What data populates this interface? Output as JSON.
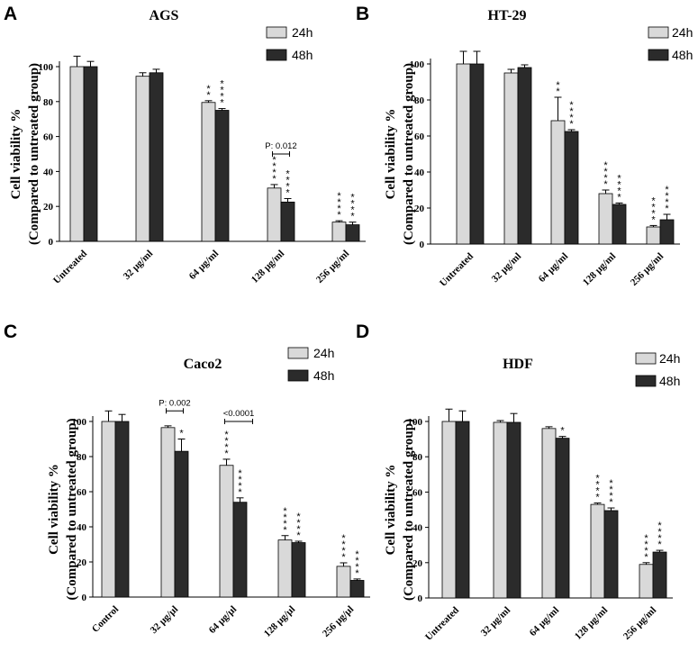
{
  "figure": {
    "series_names": [
      "24h",
      "48h"
    ],
    "colors": {
      "h24": "#d9d9d9",
      "h48": "#2b2b2b",
      "stroke": "#000000"
    }
  },
  "chart_data": [
    {
      "type": "bar",
      "panel": "A",
      "title": "AGS",
      "ylabel": "Cell viability %",
      "ylabel2": "(Compared to untreated group)",
      "ylim": [
        0,
        100
      ],
      "yticks": [
        0,
        20,
        40,
        60,
        80,
        100
      ],
      "categories": [
        "Untreated",
        "32 µg/ml",
        "64 µg/ml",
        "128 µg/ml",
        "256 µg/ml"
      ],
      "series": [
        {
          "name": "24h",
          "values": [
            100,
            94.5,
            79.5,
            30.5,
            11
          ],
          "errors": [
            6,
            2,
            1,
            2,
            0.8
          ],
          "stars": [
            "",
            "",
            "**",
            "****",
            "****"
          ]
        },
        {
          "name": "48h",
          "values": [
            100,
            96.5,
            75,
            22.5,
            9.5
          ],
          "errors": [
            3,
            2,
            1,
            2,
            1.5
          ],
          "stars": [
            "",
            "",
            "****",
            "****",
            "****"
          ]
        }
      ],
      "brackets": [
        {
          "category": 3,
          "label": "P: 0.012",
          "value": 50
        }
      ]
    },
    {
      "type": "bar",
      "panel": "B",
      "title": "HT-29",
      "ylabel": "Cell viability %",
      "ylabel2": "(Compared to untreated group)",
      "ylim": [
        0,
        100
      ],
      "yticks": [
        0,
        20,
        40,
        60,
        80,
        100
      ],
      "categories": [
        "Untreated",
        "32 µg/ml",
        "64 µg/ml",
        "128 µg/ml",
        "256 µg/ml"
      ],
      "series": [
        {
          "name": "24h",
          "values": [
            100,
            95,
            68.5,
            28,
            9.5
          ],
          "errors": [
            7,
            2,
            13,
            2,
            0.8
          ],
          "stars": [
            "",
            "",
            "**",
            "****",
            "****"
          ]
        },
        {
          "name": "48h",
          "values": [
            100,
            98,
            62.5,
            22,
            13.5
          ],
          "errors": [
            7,
            1.5,
            1,
            0.8,
            3
          ],
          "stars": [
            "",
            "",
            "****",
            "****",
            "****"
          ]
        }
      ],
      "brackets": []
    },
    {
      "type": "bar",
      "panel": "C",
      "title": "Caco2",
      "ylabel": "Cell viability %",
      "ylabel2": "(Compared to untreated group)",
      "ylim": [
        0,
        100
      ],
      "yticks": [
        0,
        20,
        40,
        60,
        80,
        100
      ],
      "categories": [
        "Control",
        "32 µg/µl",
        "64 µg/µl",
        "128 µg/µl",
        "256 µg/µl"
      ],
      "series": [
        {
          "name": "24h",
          "values": [
            100,
            96.5,
            75,
            32.5,
            17.5
          ],
          "errors": [
            6,
            1,
            3.5,
            2.5,
            2
          ],
          "stars": [
            "",
            "",
            "****",
            "****",
            "****"
          ]
        },
        {
          "name": "48h",
          "values": [
            100,
            83,
            54,
            31,
            9.5
          ],
          "errors": [
            4,
            7,
            2.5,
            0.8,
            0.8
          ],
          "stars": [
            "",
            "*",
            "****",
            "****",
            "****"
          ]
        }
      ],
      "brackets": [
        {
          "category": 1,
          "label": "P: 0.002",
          "value": 106
        },
        {
          "category": 2,
          "label": "<0.0001",
          "value": 100
        }
      ]
    },
    {
      "type": "bar",
      "panel": "D",
      "title": "HDF",
      "ylabel": "Cell viability %",
      "ylabel2": "(Compared to untreated group)",
      "ylim": [
        0,
        100
      ],
      "yticks": [
        0,
        20,
        40,
        60,
        80,
        100
      ],
      "categories": [
        "Untreated",
        "32 µg/ml",
        "64 µg/ml",
        "128 µg/ml",
        "256 µg/ml"
      ],
      "series": [
        {
          "name": "24h",
          "values": [
            100,
            99.5,
            96,
            53,
            19
          ],
          "errors": [
            7,
            1,
            1,
            0.8,
            1
          ],
          "stars": [
            "",
            "",
            "",
            "****",
            "****"
          ]
        },
        {
          "name": "48h",
          "values": [
            100,
            99.5,
            90.5,
            49.5,
            26
          ],
          "errors": [
            6,
            5,
            1,
            1.5,
            1
          ],
          "stars": [
            "",
            "",
            "*",
            "****",
            "****"
          ]
        }
      ],
      "brackets": []
    }
  ]
}
